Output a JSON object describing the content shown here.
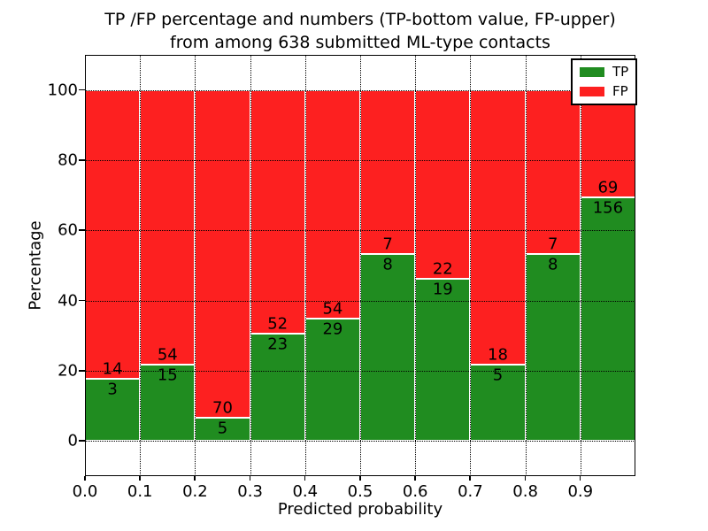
{
  "figure": {
    "title_line1": "TP /FP percentage and numbers (TP-bottom value, FP-upper)",
    "title_line2": "from among 638 submitted ML-type contacts",
    "xlabel": "Predicted probability",
    "ylabel": "Percentage"
  },
  "legend": {
    "position": "upper right",
    "items": [
      {
        "label": "TP",
        "color": "#208c20"
      },
      {
        "label": "FP",
        "color": "#fd2020"
      }
    ]
  },
  "chart_data": {
    "type": "bar",
    "subtype": "stacked-percentage-histogram",
    "title": "TP /FP percentage and numbers (TP-bottom value, FP-upper) from among 638 submitted ML-type contacts",
    "xlabel": "Predicted probability",
    "ylabel": "Percentage",
    "total_contacts": 638,
    "bin_edges": [
      0.0,
      0.1,
      0.2,
      0.3,
      0.4,
      0.5,
      0.6,
      0.7,
      0.8,
      0.9,
      1.0
    ],
    "series": [
      {
        "name": "TP",
        "color": "#208c20",
        "counts": [
          3,
          15,
          5,
          23,
          29,
          8,
          19,
          5,
          8,
          156
        ]
      },
      {
        "name": "FP",
        "color": "#fd2020",
        "counts": [
          14,
          54,
          70,
          52,
          54,
          7,
          22,
          18,
          7,
          69
        ]
      }
    ],
    "tp_percent_height": [
      17.6,
      21.7,
      6.7,
      30.7,
      34.9,
      53.3,
      46.3,
      21.7,
      53.3,
      69.3
    ],
    "bar_total_percent": 100,
    "label_rule": "TP count printed below the TP/FP boundary, FP count printed above it",
    "xticks": [
      "0.0",
      "0.1",
      "0.2",
      "0.3",
      "0.4",
      "0.5",
      "0.6",
      "0.7",
      "0.8",
      "0.9"
    ],
    "yticks": [
      "0",
      "20",
      "40",
      "60",
      "80",
      "100"
    ],
    "xlim": [
      0.0,
      1.0
    ],
    "ylim": [
      -10,
      110
    ],
    "grid": "dotted",
    "legend_position": "upper right"
  }
}
